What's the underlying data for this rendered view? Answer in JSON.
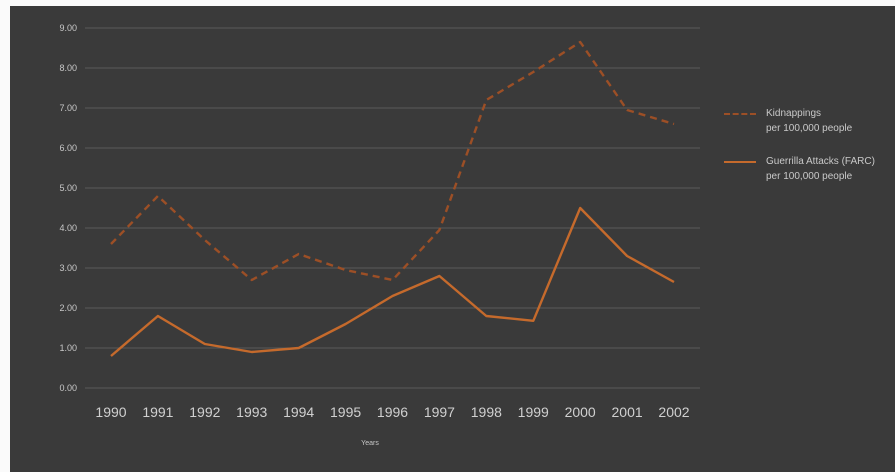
{
  "chart_data": {
    "type": "line",
    "x": [
      "1990",
      "1991",
      "1992",
      "1993",
      "1994",
      "1995",
      "1996",
      "1997",
      "1998",
      "1999",
      "2000",
      "2001",
      "2002"
    ],
    "yticks": [
      "0.00",
      "1.00",
      "2.00",
      "3.00",
      "4.00",
      "5.00",
      "6.00",
      "7.00",
      "8.00",
      "9.00"
    ],
    "ylim": [
      0,
      9
    ],
    "xlabel": "Years",
    "ylabel": "",
    "title": "",
    "grid": true,
    "legend_position": "right",
    "series": [
      {
        "name_lines": [
          "Kidnappings",
          "per 100,000 people"
        ],
        "style": "dashed",
        "color": "#9c4f26",
        "values": [
          3.6,
          4.8,
          3.7,
          2.7,
          3.35,
          2.95,
          2.7,
          3.95,
          7.2,
          7.9,
          8.65,
          6.95,
          6.6
        ]
      },
      {
        "name_lines": [
          "Guerrilla Attacks (FARC)",
          "per 100,000 people"
        ],
        "style": "solid",
        "color": "#c56a2c",
        "values": [
          0.8,
          1.8,
          1.1,
          0.9,
          1.0,
          1.6,
          2.3,
          2.8,
          1.8,
          1.68,
          4.5,
          3.3,
          2.65
        ]
      }
    ]
  }
}
